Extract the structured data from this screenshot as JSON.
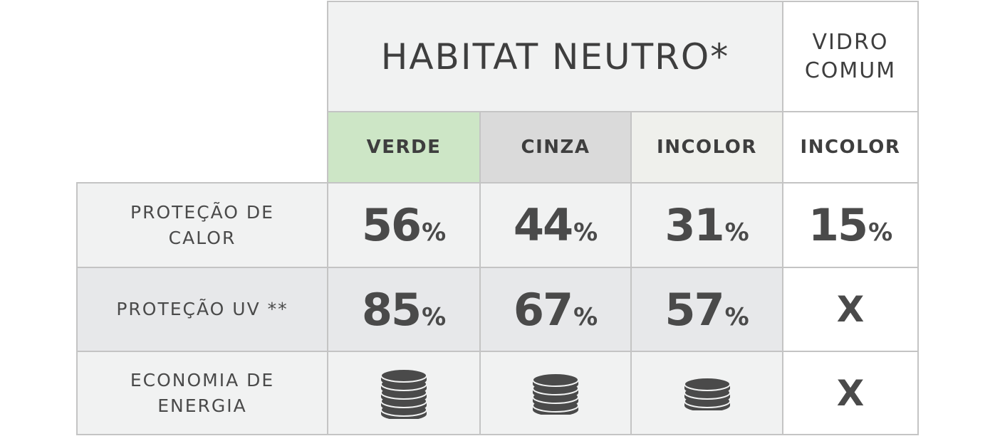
{
  "header": {
    "brand_title": "HABITAT NEUTRO*",
    "compare_title_line1": "VIDRO",
    "compare_title_line2": "COMUM"
  },
  "columns": [
    "VERDE",
    "CINZA",
    "INCOLOR",
    "INCOLOR"
  ],
  "rows": {
    "heat": {
      "label_line1": "PROTEÇÃO DE",
      "label_line2": "CALOR",
      "values": [
        "56",
        "44",
        "31",
        "15"
      ],
      "unit": "%"
    },
    "uv": {
      "label": "PROTEÇÃO UV **",
      "values": [
        "85",
        "67",
        "57"
      ],
      "unit": "%",
      "none_mark": "X"
    },
    "energy": {
      "label_line1": "ECONOMIA DE",
      "label_line2": "ENERGIA",
      "coin_icons": "coin-stack-icon",
      "coin_counts": [
        5,
        4,
        3
      ],
      "none_mark": "X"
    }
  },
  "colors": {
    "verde": "#cde6c6",
    "cinza": "#dadada",
    "incolor": "#eff0ec",
    "border": "#c4c4c4",
    "text": "#4a4a4a"
  }
}
